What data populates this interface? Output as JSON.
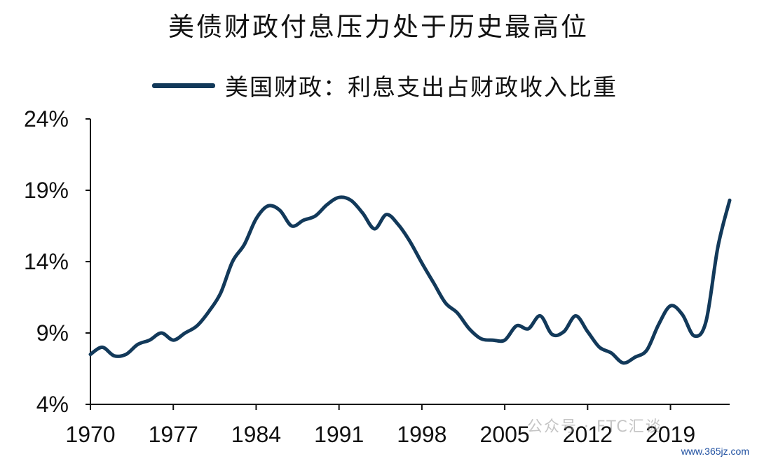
{
  "chart_data": {
    "type": "line",
    "title": "美债财政付息压力处于历史最高位",
    "series": [
      {
        "name": "美国财政：利息支出占财政收入比重",
        "color": "#12395a",
        "x": [
          1970,
          1971,
          1972,
          1973,
          1974,
          1975,
          1976,
          1977,
          1978,
          1979,
          1980,
          1981,
          1982,
          1983,
          1984,
          1985,
          1986,
          1987,
          1988,
          1989,
          1990,
          1991,
          1992,
          1993,
          1994,
          1995,
          1996,
          1997,
          1998,
          1999,
          2000,
          2001,
          2002,
          2003,
          2004,
          2005,
          2006,
          2007,
          2008,
          2009,
          2010,
          2011,
          2012,
          2013,
          2014,
          2015,
          2016,
          2017,
          2018,
          2019,
          2020,
          2021,
          2022,
          2023,
          2024
        ],
        "values": [
          7.5,
          8.0,
          7.4,
          7.5,
          8.2,
          8.5,
          9.0,
          8.5,
          9.0,
          9.5,
          10.5,
          11.8,
          14.0,
          15.2,
          17.0,
          17.9,
          17.6,
          16.5,
          16.9,
          17.2,
          18.0,
          18.5,
          18.3,
          17.4,
          16.3,
          17.3,
          16.6,
          15.4,
          13.9,
          12.5,
          11.1,
          10.4,
          9.3,
          8.6,
          8.5,
          8.5,
          9.5,
          9.3,
          10.2,
          8.9,
          9.1,
          10.2,
          9.1,
          8.0,
          7.6,
          6.9,
          7.3,
          7.8,
          9.6,
          10.9,
          10.3,
          8.8,
          9.8,
          15.0,
          18.3
        ]
      }
    ],
    "xticks": [
      "1970",
      "1977",
      "1984",
      "1991",
      "1998",
      "2005",
      "2012",
      "2019"
    ],
    "yticks": [
      "4%",
      "9%",
      "14%",
      "19%",
      "24%"
    ],
    "ylim": [
      4,
      24
    ],
    "xlim": [
      1970,
      2024
    ],
    "grid": false,
    "legend_position": "top"
  },
  "watermark": {
    "text": "公众号 · FTC汇谈",
    "url": "www.365jz.com"
  }
}
